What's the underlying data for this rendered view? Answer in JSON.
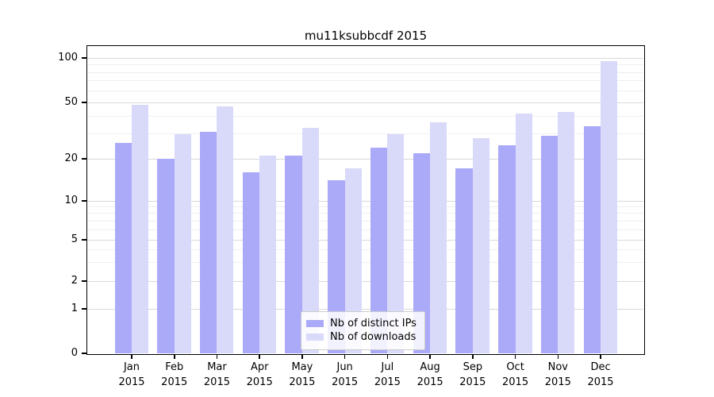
{
  "title": "mu11ksubbcdf 2015",
  "legend": {
    "items": [
      {
        "label": "Nb of distinct IPs",
        "color": "#aaaaf8"
      },
      {
        "label": "Nb of downloads",
        "color": "#d9d9fa"
      }
    ]
  },
  "axes": {
    "y_tick_labels": [
      "0",
      "1",
      "2",
      "5",
      "10",
      "20",
      "50",
      "100"
    ],
    "x_tick_labels": [
      "Jan 2015",
      "Feb 2015",
      "Mar 2015",
      "Apr 2015",
      "May 2015",
      "Jun 2015",
      "Jul 2015",
      "Aug 2015",
      "Sep 2015",
      "Oct 2015",
      "Nov 2015",
      "Dec 2015"
    ]
  },
  "chart_data": {
    "type": "bar",
    "title": "mu11ksubbcdf 2015",
    "categories": [
      "Jan 2015",
      "Feb 2015",
      "Mar 2015",
      "Apr 2015",
      "May 2015",
      "Jun 2015",
      "Jul 2015",
      "Aug 2015",
      "Sep 2015",
      "Oct 2015",
      "Nov 2015",
      "Dec 2015"
    ],
    "series": [
      {
        "name": "Nb of distinct IPs",
        "color": "#aaaaf8",
        "values": [
          26,
          20,
          31,
          16,
          21,
          14,
          24,
          22,
          17,
          25,
          29,
          34
        ]
      },
      {
        "name": "Nb of downloads",
        "color": "#d9d9fa",
        "values": [
          48,
          30,
          47,
          21,
          33,
          17,
          30,
          36,
          28,
          42,
          43,
          95
        ]
      }
    ],
    "xlabel": "",
    "ylabel": "",
    "yscale": "symlog",
    "y_ticks": [
      0,
      1,
      2,
      5,
      10,
      20,
      50,
      100
    ],
    "y_minor_ticks": [
      3,
      4,
      6,
      7,
      8,
      9,
      30,
      40,
      60,
      70,
      80,
      90
    ],
    "ylim": [
      0,
      100
    ],
    "grid": true,
    "legend_position": "lower-center-inside"
  }
}
